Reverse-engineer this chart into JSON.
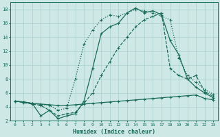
{
  "xlabel": "Humidex (Indice chaleur)",
  "bg_color": "#cde8e5",
  "grid_color": "#aad0cc",
  "line_color": "#1a6b5a",
  "xlim": [
    -0.5,
    23.5
  ],
  "ylim": [
    2,
    19
  ],
  "xticks": [
    0,
    1,
    2,
    3,
    4,
    5,
    6,
    7,
    8,
    9,
    10,
    11,
    12,
    13,
    14,
    15,
    16,
    17,
    18,
    19,
    20,
    21,
    22,
    23
  ],
  "yticks": [
    2,
    4,
    6,
    8,
    10,
    12,
    14,
    16,
    18
  ],
  "series_solid_flat_x": [
    0,
    1,
    2,
    3,
    4,
    5,
    6,
    7,
    8,
    9,
    10,
    11,
    12,
    13,
    14,
    15,
    16,
    17,
    18,
    19,
    20,
    21,
    22,
    23
  ],
  "series_solid_flat_y": [
    4.8,
    4.7,
    4.5,
    4.4,
    4.3,
    4.2,
    4.2,
    4.3,
    4.4,
    4.5,
    4.6,
    4.7,
    4.8,
    4.9,
    5.0,
    5.1,
    5.2,
    5.3,
    5.4,
    5.5,
    5.6,
    5.7,
    5.2,
    5.0
  ],
  "series_dashed_x": [
    0,
    1,
    2,
    3,
    4,
    5,
    6,
    7,
    8,
    9,
    10,
    11,
    12,
    13,
    14,
    15,
    16,
    17,
    18,
    19,
    20,
    21,
    22,
    23
  ],
  "series_dashed_y": [
    4.8,
    4.6,
    4.4,
    4.2,
    3.5,
    2.7,
    3.0,
    3.2,
    4.5,
    6.0,
    8.5,
    10.5,
    12.5,
    14.0,
    15.5,
    16.5,
    17.0,
    17.5,
    9.5,
    8.5,
    8.0,
    8.5,
    6.2,
    5.5
  ],
  "series_dotted_x": [
    0,
    1,
    2,
    3,
    4,
    5,
    6,
    7,
    8,
    9,
    10,
    11,
    12,
    13,
    14,
    15,
    16,
    17,
    18,
    19,
    20,
    21,
    22,
    23
  ],
  "series_dotted_y": [
    4.8,
    4.7,
    4.5,
    4.3,
    4.2,
    3.5,
    3.8,
    8.0,
    13.0,
    15.0,
    16.5,
    17.2,
    17.0,
    17.5,
    18.0,
    17.8,
    17.5,
    17.0,
    16.5,
    11.0,
    8.5,
    7.5,
    6.5,
    5.8
  ],
  "series_solid_peak_x": [
    0,
    1,
    2,
    3,
    4,
    5,
    6,
    7,
    8,
    9,
    10,
    11,
    12,
    13,
    14,
    15,
    16,
    17,
    18,
    19,
    20,
    21,
    22,
    23
  ],
  "series_solid_peak_y": [
    4.8,
    4.7,
    4.5,
    2.7,
    3.5,
    2.3,
    2.7,
    3.0,
    4.8,
    9.5,
    14.5,
    15.5,
    16.0,
    17.5,
    18.2,
    17.5,
    17.8,
    17.2,
    13.5,
    11.5,
    8.0,
    6.8,
    6.0,
    5.3
  ]
}
